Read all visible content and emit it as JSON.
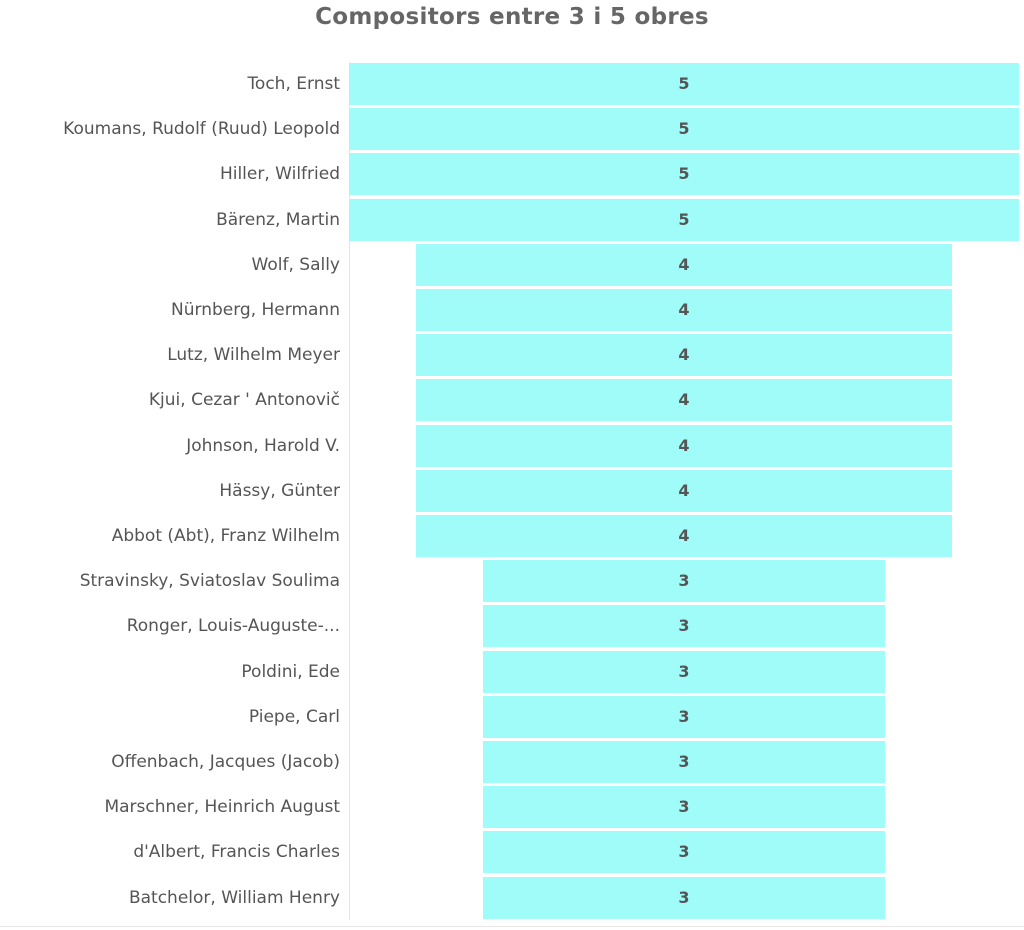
{
  "chart_data": {
    "type": "bar",
    "orientation": "horizontal",
    "style": "centered-funnel",
    "title": "Compositors entre 3 i 5 obres",
    "xlabel": "",
    "ylabel": "",
    "grid": false,
    "bar_color": "#9ffcf9",
    "categories": [
      "Toch, Ernst",
      "Koumans, Rudolf (Ruud) Leopold",
      "Hiller, Wilfried",
      "Bärenz, Martin",
      "Wolf, Sally",
      "Nürnberg, Hermann",
      "Lutz, Wilhelm Meyer",
      "Kjui, Cezar ' Antonovič",
      "Johnson, Harold V.",
      "Hässy, Günter",
      "Abbot (Abt), Franz Wilhelm",
      "Stravinsky, Sviatoslav Soulima",
      "Ronger, Louis-Auguste-...",
      "Poldini, Ede",
      "Piepe, Carl",
      "Offenbach, Jacques (Jacob)",
      "Marschner, Heinrich August",
      "d'Albert, Francis Charles",
      "Batchelor, William Henry"
    ],
    "values": [
      5,
      5,
      5,
      5,
      4,
      4,
      4,
      4,
      4,
      4,
      4,
      3,
      3,
      3,
      3,
      3,
      3,
      3,
      3
    ]
  }
}
